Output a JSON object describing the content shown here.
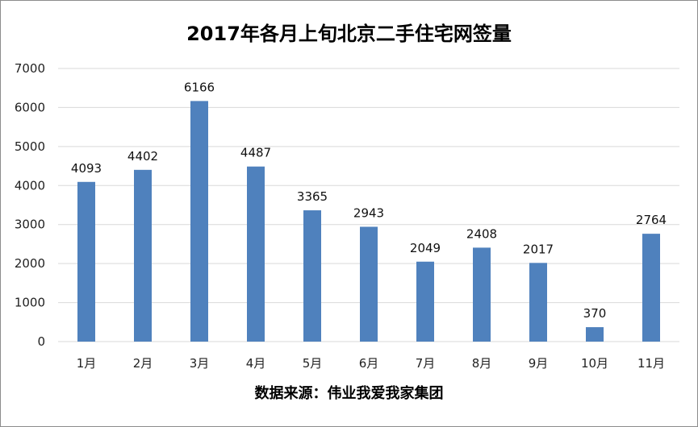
{
  "chart_data": {
    "type": "bar",
    "title": "2017年各月上旬北京二手住宅网签量",
    "xlabel": "数据来源：伟业我爱我家集团",
    "ylabel": "",
    "categories": [
      "1月",
      "2月",
      "3月",
      "4月",
      "5月",
      "6月",
      "7月",
      "8月",
      "9月",
      "10月",
      "11月"
    ],
    "values": [
      4093,
      4402,
      6166,
      4487,
      3365,
      2943,
      2049,
      2408,
      2017,
      370,
      2764
    ],
    "ylim": [
      0,
      7000
    ],
    "yticks": [
      0,
      1000,
      2000,
      3000,
      4000,
      5000,
      6000,
      7000
    ],
    "grid": true,
    "legend": "none",
    "bar_color": "#4f81bd",
    "grid_color": "#d9d9d9"
  }
}
